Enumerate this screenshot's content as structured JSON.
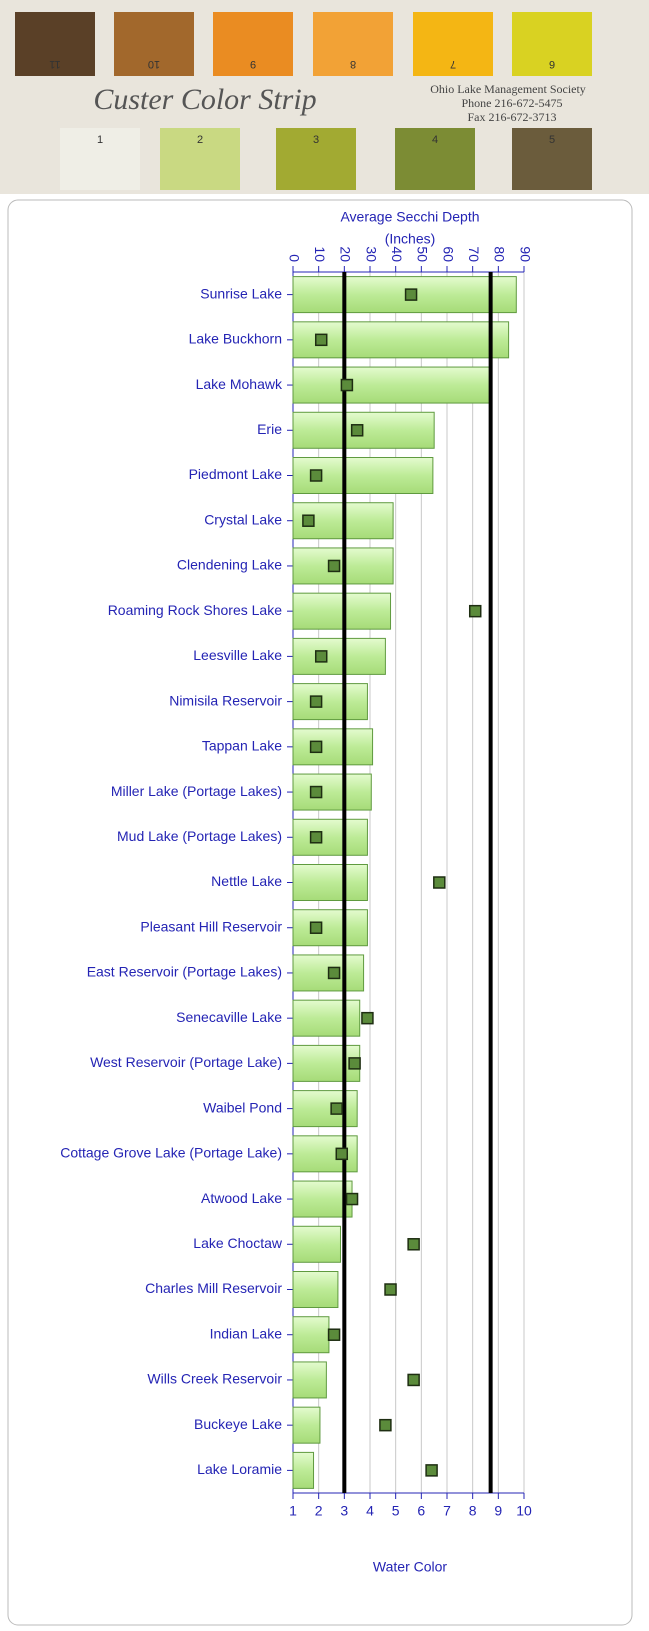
{
  "strip": {
    "title": "Custer Color Strip",
    "org": "Ohio Lake Management Society",
    "phone": "Phone 216-672-5475",
    "fax": "Fax 216-672-3713",
    "top": [
      {
        "label": "11",
        "color": "#5a4027"
      },
      {
        "label": "10",
        "color": "#a2682c"
      },
      {
        "label": "9",
        "color": "#ea8c22"
      },
      {
        "label": "8",
        "color": "#f2a236"
      },
      {
        "label": "7",
        "color": "#f4b614"
      },
      {
        "label": "6",
        "color": "#d9d222"
      }
    ],
    "bottom": [
      {
        "label": "1",
        "color": "#efeee6"
      },
      {
        "label": "2",
        "color": "#c9d982"
      },
      {
        "label": "3",
        "color": "#a2aa32"
      },
      {
        "label": "4",
        "color": "#7c8c34"
      },
      {
        "label": "5",
        "color": "#6b5c3c"
      }
    ]
  },
  "chart_data": {
    "type": "bar",
    "xlabel": [
      "Average Secchi Depth",
      "(Inches)"
    ],
    "x2label": "Water Color",
    "categories": [
      "Sunrise Lake",
      "Lake Buckhorn",
      "Lake Mohawk",
      "Erie",
      "Piedmont Lake",
      "Crystal Lake",
      "Clendening Lake",
      "Roaming Rock Shores Lake",
      "Leesville Lake",
      "Nimisila Reservoir",
      "Tappan Lake",
      "Miller Lake (Portage Lakes)",
      "Mud Lake (Portage Lakes)",
      "Nettle Lake",
      "Pleasant Hill Reservoir",
      "East Reservoir (Portage Lakes)",
      "Senecaville Lake",
      "West Reservoir (Portage Lake)",
      "Waibel Pond",
      "Cottage Grove Lake (Portage Lake)",
      "Atwood Lake",
      "Lake Choctaw",
      "Charles Mill Reservoir",
      "Indian Lake",
      "Wills Creek Reservoir",
      "Buckeye Lake",
      "Lake Loramie"
    ],
    "series": [
      {
        "color": "#bdeb97",
        "values": [
          87,
          84,
          77,
          55,
          54.5,
          39,
          39,
          38,
          36,
          29,
          31,
          30.5,
          29,
          29,
          29,
          27.5,
          26,
          26,
          25,
          25,
          23,
          18.5,
          17.5,
          14,
          13,
          10.5,
          8
        ]
      },
      {
        "color": "#5b8b3b",
        "axis": "x2",
        "values": [
          5.6,
          2.1,
          3.1,
          3.5,
          1.9,
          1.6,
          2.6,
          8.1,
          2.1,
          1.9,
          1.9,
          1.9,
          1.9,
          6.7,
          1.9,
          2.6,
          3.9,
          3.4,
          2.7,
          2.9,
          3.3,
          5.7,
          4.8,
          2.6,
          5.7,
          4.6,
          6.4
        ]
      }
    ],
    "xlim": [
      0,
      90
    ],
    "xticks": [
      0,
      10,
      20,
      30,
      40,
      50,
      60,
      70,
      80,
      90
    ],
    "x2lim": [
      1,
      10
    ],
    "x2ticks": [
      1,
      2,
      3,
      4,
      5,
      6,
      7,
      8,
      9,
      10
    ],
    "reference_lines": [
      20,
      77
    ],
    "grid": true
  }
}
